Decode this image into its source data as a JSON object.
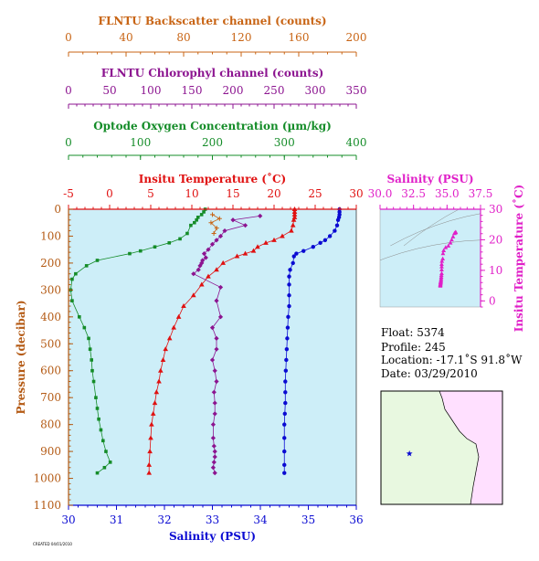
{
  "colors": {
    "backscatter": "#c86414",
    "chlorophyll": "#8c1490",
    "oxygen": "#148c28",
    "temperature": "#e01010",
    "salinity": "#0a0ad2",
    "ts": "#e020c8",
    "pressure": "#b45a14",
    "plot_bg": "#cdeef8",
    "land": "#ffe0ff",
    "ocean": "#e8f8e0"
  },
  "axes": {
    "backscatter": {
      "title": "FLNTU Backscatter channel (counts)",
      "range": [
        0,
        200
      ],
      "ticks": [
        "0",
        "40",
        "80",
        "120",
        "160",
        "200"
      ]
    },
    "chlorophyll": {
      "title": "FLNTU Chlorophyl channel (counts)",
      "range": [
        0,
        350
      ],
      "ticks": [
        "0",
        "50",
        "100",
        "150",
        "200",
        "250",
        "300",
        "350"
      ]
    },
    "oxygen": {
      "title": "Optode Oxygen Concentration (µm/kg)",
      "range": [
        0,
        400
      ],
      "ticks": [
        "0",
        "100",
        "200",
        "300",
        "400"
      ]
    },
    "temperature": {
      "title": "Insitu Temperature (˚C)",
      "range": [
        -5,
        30
      ],
      "ticks": [
        "-5",
        "0",
        "5",
        "10",
        "15",
        "20",
        "25",
        "30"
      ]
    },
    "salinity": {
      "title": "Salinity (PSU)",
      "range": [
        30,
        36
      ],
      "ticks": [
        "30",
        "31",
        "32",
        "33",
        "34",
        "35",
        "36"
      ]
    },
    "pressure": {
      "title": "Pressure (decibar)",
      "range": [
        0,
        1100
      ],
      "ticks": [
        "0",
        "100",
        "200",
        "300",
        "400",
        "500",
        "600",
        "700",
        "800",
        "900",
        "1000",
        "1100"
      ]
    },
    "ts_salinity": {
      "title": "Salinity (PSU)",
      "range": [
        30,
        37.5
      ],
      "ticks": [
        "30.0",
        "32.5",
        "35.0",
        "37.5"
      ]
    },
    "ts_temperature": {
      "title": "Insitu Temperature (˚C)",
      "range": [
        -2,
        30
      ],
      "ticks": [
        "0",
        "10",
        "20",
        "30"
      ]
    }
  },
  "info": {
    "float": "Float:  5374",
    "profile": "Profile:  245",
    "location": "Location:  -17.1˚S  91.8˚W",
    "date": "Date:  03/29/2010"
  },
  "footer": "CREATED 04/01/2010",
  "chart_data": [
    {
      "type": "line",
      "title": "",
      "ylabel": "Pressure (decibar)",
      "ylim": [
        1100,
        0
      ],
      "grid": false,
      "series": [
        {
          "name": "Insitu Temperature (˚C)",
          "axis": "temperature",
          "marker": "triangle",
          "x": [
            22.5,
            22.5,
            22.5,
            22.5,
            22.4,
            22.3,
            22.1,
            21.0,
            20.0,
            19.0,
            18.0,
            17.5,
            16.5,
            15.5,
            13.8,
            13.0,
            12.0,
            11.2,
            10.2,
            9.0,
            8.4,
            7.8,
            7.3,
            6.8,
            6.5,
            6.2,
            6.0,
            5.7,
            5.5,
            5.3,
            5.1,
            5.0,
            4.9,
            4.8,
            4.8
          ],
          "y": [
            0,
            10,
            20,
            30,
            40,
            60,
            80,
            100,
            115,
            125,
            140,
            155,
            165,
            175,
            200,
            225,
            250,
            280,
            320,
            360,
            400,
            440,
            480,
            520,
            560,
            600,
            640,
            680,
            720,
            760,
            800,
            850,
            900,
            950,
            980
          ]
        },
        {
          "name": "Salinity (PSU)",
          "axis": "salinity",
          "marker": "circle",
          "x": [
            35.65,
            35.65,
            35.65,
            35.64,
            35.62,
            35.6,
            35.55,
            35.45,
            35.35,
            35.25,
            35.1,
            34.9,
            34.75,
            34.7,
            34.68,
            34.62,
            34.6,
            34.6,
            34.6,
            34.6,
            34.58,
            34.57,
            34.56,
            34.55,
            34.54,
            34.53,
            34.52,
            34.52,
            34.52,
            34.51,
            34.5,
            34.5,
            34.5,
            34.5,
            34.5
          ],
          "y": [
            0,
            10,
            20,
            30,
            40,
            60,
            80,
            100,
            115,
            125,
            140,
            155,
            165,
            175,
            200,
            225,
            250,
            280,
            320,
            360,
            400,
            440,
            480,
            520,
            560,
            600,
            640,
            680,
            720,
            760,
            800,
            850,
            900,
            950,
            980
          ]
        },
        {
          "name": "Optode Oxygen Concentration (µm/kg)",
          "axis": "oxygen",
          "marker": "square",
          "x": [
            190,
            188,
            185,
            180,
            178,
            175,
            170,
            165,
            155,
            140,
            120,
            100,
            85,
            40,
            25,
            10,
            5,
            3,
            5,
            15,
            22,
            28,
            30,
            32,
            33,
            35,
            38,
            40,
            42,
            45,
            48,
            52,
            58,
            50,
            40
          ],
          "y": [
            0,
            10,
            20,
            30,
            40,
            50,
            60,
            90,
            110,
            125,
            140,
            155,
            165,
            190,
            210,
            240,
            260,
            300,
            340,
            400,
            440,
            480,
            520,
            560,
            600,
            640,
            700,
            740,
            780,
            820,
            860,
            900,
            940,
            960,
            980
          ]
        },
        {
          "name": "FLNTU Chlorophyl channel (counts)",
          "axis": "chlorophyll",
          "marker": "diamond",
          "x": [
            233,
            200,
            215,
            190,
            185,
            180,
            175,
            170,
            165,
            167,
            163,
            162,
            160,
            158,
            152,
            185,
            180,
            185,
            175,
            180,
            180,
            175,
            178,
            180,
            177,
            178,
            178,
            176,
            176,
            177,
            178,
            178,
            177,
            176,
            178
          ],
          "y": [
            25,
            40,
            60,
            80,
            100,
            115,
            130,
            150,
            165,
            180,
            190,
            200,
            210,
            225,
            240,
            290,
            340,
            400,
            440,
            480,
            520,
            560,
            600,
            640,
            680,
            720,
            760,
            800,
            850,
            880,
            900,
            920,
            940,
            960,
            980
          ]
        },
        {
          "name": "FLNTU Backscatter channel (counts)",
          "axis": "backscatter",
          "marker": "plus",
          "x": [
            100,
            105,
            99,
            103,
            101
          ],
          "y": [
            20,
            35,
            50,
            70,
            90
          ]
        }
      ]
    },
    {
      "type": "scatter",
      "title": "",
      "xlabel": "Salinity (PSU)",
      "ylabel": "Insitu Temperature (˚C)",
      "xlim": [
        30,
        37.5
      ],
      "ylim": [
        -2,
        30
      ],
      "grid": false,
      "series": [
        {
          "name": "T-S",
          "x": [
            35.65,
            35.64,
            35.6,
            35.55,
            35.45,
            35.35,
            35.25,
            35.1,
            34.9,
            34.75,
            34.7,
            34.68,
            34.62,
            34.6,
            34.6,
            34.6,
            34.6,
            34.58,
            34.57,
            34.56,
            34.55,
            34.54,
            34.53,
            34.52,
            34.52,
            34.51,
            34.5,
            34.5,
            34.5
          ],
          "y": [
            22.5,
            22.4,
            22.3,
            22.1,
            21.0,
            20.0,
            19.0,
            18.0,
            17.5,
            16.5,
            15.5,
            13.8,
            13.0,
            12.0,
            11.2,
            10.2,
            9.0,
            8.4,
            7.8,
            7.3,
            6.8,
            6.5,
            6.2,
            6.0,
            5.7,
            5.5,
            5.3,
            5.1,
            4.9
          ]
        }
      ]
    }
  ],
  "map": {
    "marker": "star",
    "float_lon": -91.8,
    "float_lat": -17.1,
    "extent_lon": [
      -100,
      -65
    ],
    "extent_lat": [
      -35,
      5
    ]
  }
}
